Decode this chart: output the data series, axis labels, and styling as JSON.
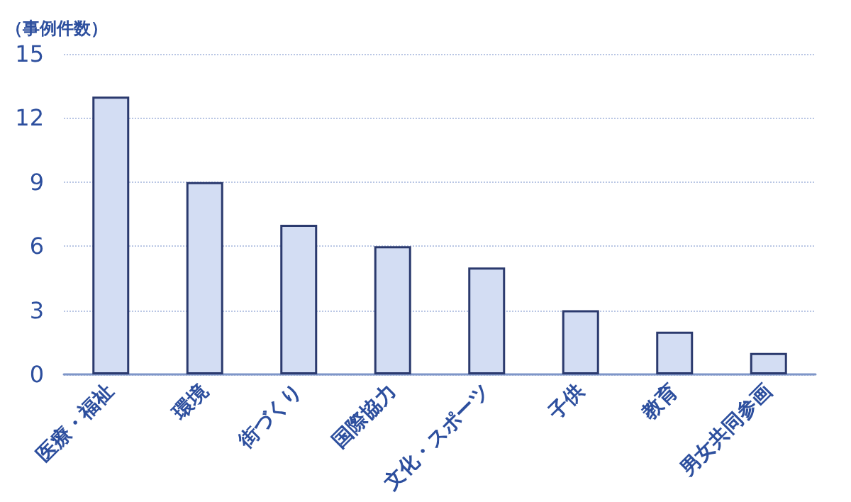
{
  "chart_data": {
    "type": "bar",
    "ylabel": "（事例件数）",
    "categories": [
      "医療・福祉",
      "環境",
      "街づくり",
      "国際協力",
      "文化・スポーツ",
      "子供",
      "教育",
      "男女共同参画"
    ],
    "values": [
      13,
      9,
      7,
      6,
      5,
      3,
      2,
      1
    ],
    "color": "#d3ddf3",
    "ylim": [
      0,
      15
    ],
    "yticks": [
      0,
      3,
      6,
      9,
      12,
      15
    ],
    "grid": "y"
  }
}
